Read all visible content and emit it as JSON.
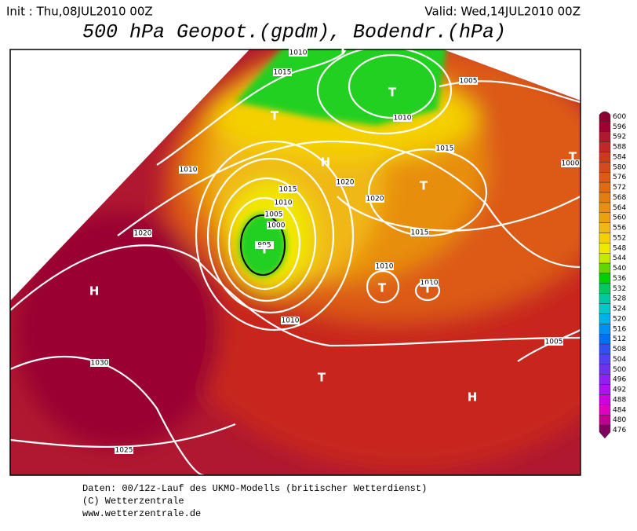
{
  "header": {
    "init": "Init : Thu,08JUL2010 00Z",
    "valid": "Valid: Wed,14JUL2010 00Z",
    "title": "500 hPa Geopot.(gpdm), Bodendr.(hPa)"
  },
  "colorbar": {
    "levels": [
      600,
      596,
      592,
      588,
      584,
      580,
      576,
      572,
      568,
      564,
      560,
      556,
      552,
      548,
      544,
      540,
      536,
      532,
      528,
      524,
      520,
      516,
      512,
      508,
      504,
      500,
      496,
      492,
      488,
      484,
      480,
      476
    ],
    "colors": [
      "#8b0030",
      "#a00030",
      "#b01830",
      "#c02828",
      "#cc3a1e",
      "#d44a18",
      "#dc5a14",
      "#e06a10",
      "#e47c10",
      "#e88e10",
      "#eca010",
      "#f0b814",
      "#f4d000",
      "#f0e800",
      "#c8e800",
      "#60d800",
      "#00d000",
      "#00c860",
      "#00c8a0",
      "#00c8c8",
      "#00b0e8",
      "#0090f0",
      "#0070f0",
      "#3050f0",
      "#5040f0",
      "#7030f0",
      "#9020f0",
      "#b010f0",
      "#d000e0",
      "#e000c0",
      "#c00090",
      "#800060"
    ]
  },
  "isobar_labels": [
    1010,
    1015,
    1005,
    1010,
    1015,
    1010,
    1020,
    1000,
    1020,
    1015,
    1010,
    1005,
    1000,
    995,
    1020,
    1015,
    1010,
    1010,
    1010,
    1005,
    1030,
    1025
  ],
  "pressure_centers": [
    "T",
    "T",
    "T",
    "H",
    "T",
    "T",
    "T",
    "T",
    "T",
    "H",
    "T",
    "H"
  ],
  "footer": [
    "Daten: 00/12z-Lauf des UKMO-Modells (britischer Wetterdienst)",
    "(C) Wetterzentrale",
    "www.wetterzentrale.de"
  ]
}
